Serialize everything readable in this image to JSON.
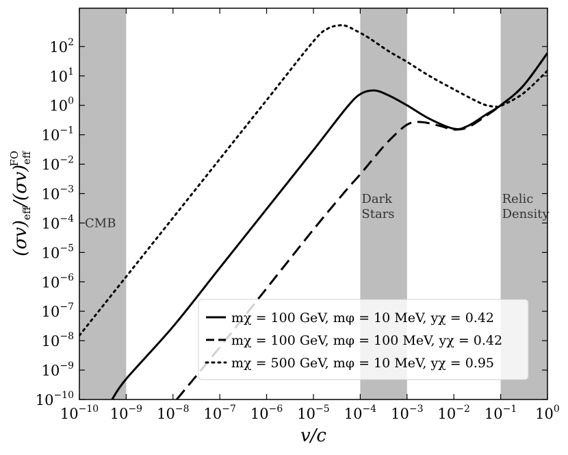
{
  "chart_data": {
    "type": "line",
    "xscale": "log",
    "yscale": "log",
    "xlim": [
      1e-10,
      1
    ],
    "ylim": [
      1e-10,
      2000
    ],
    "xlabel": "v/c",
    "ylabel": "(σv)eff/(σv)eff^FO",
    "x_ticks": [
      {
        "mantissa": "10",
        "exp": "−10"
      },
      {
        "mantissa": "10",
        "exp": "−9"
      },
      {
        "mantissa": "10",
        "exp": "−8"
      },
      {
        "mantissa": "10",
        "exp": "−7"
      },
      {
        "mantissa": "10",
        "exp": "−6"
      },
      {
        "mantissa": "10",
        "exp": "−5"
      },
      {
        "mantissa": "10",
        "exp": "−4"
      },
      {
        "mantissa": "10",
        "exp": "−3"
      },
      {
        "mantissa": "10",
        "exp": "−2"
      },
      {
        "mantissa": "10",
        "exp": "−1"
      },
      {
        "mantissa": "10",
        "exp": "0"
      }
    ],
    "y_ticks": [
      {
        "mantissa": "10",
        "exp": "−10"
      },
      {
        "mantissa": "10",
        "exp": "−9"
      },
      {
        "mantissa": "10",
        "exp": "−8"
      },
      {
        "mantissa": "10",
        "exp": "−7"
      },
      {
        "mantissa": "10",
        "exp": "−6"
      },
      {
        "mantissa": "10",
        "exp": "−5"
      },
      {
        "mantissa": "10",
        "exp": "−4"
      },
      {
        "mantissa": "10",
        "exp": "−3"
      },
      {
        "mantissa": "10",
        "exp": "−2"
      },
      {
        "mantissa": "10",
        "exp": "−1"
      },
      {
        "mantissa": "10",
        "exp": "0"
      },
      {
        "mantissa": "10",
        "exp": "1"
      },
      {
        "mantissa": "10",
        "exp": "2"
      }
    ],
    "shaded_regions": [
      {
        "label_lines": [
          "CMB"
        ],
        "x_from": 1e-10,
        "x_to": 1e-09,
        "label_position": "left"
      },
      {
        "label_lines": [
          "Dark",
          "Stars"
        ],
        "x_from": 0.0001,
        "x_to": 0.001,
        "label_position": "left"
      },
      {
        "label_lines": [
          "Relic",
          "Density"
        ],
        "x_from": 0.1,
        "x_to": 1,
        "label_position": "left"
      }
    ],
    "region_color": "#bdbdbd",
    "legend_position": "lower-right",
    "series": [
      {
        "name": "mχ = 100 GeV, mφ = 10 MeV, yχ = 0.42",
        "style": "solid",
        "x": [
          5e-10,
          1e-09,
          1e-08,
          1e-07,
          1e-06,
          1e-05,
          5e-05,
          0.0001,
          0.0002,
          0.0004,
          0.001,
          0.003,
          0.01,
          0.02,
          0.05,
          0.1,
          0.3,
          1
        ],
        "y": [
          1e-10,
          5e-10,
          3e-08,
          3e-06,
          0.0003,
          0.03,
          0.8,
          2.4,
          3.2,
          2.2,
          1.0,
          0.35,
          0.16,
          0.2,
          0.5,
          1.0,
          4.5,
          60
        ]
      },
      {
        "name": "mχ = 100 GeV, mφ = 100 MeV, yχ = 0.42",
        "style": "dashed",
        "x": [
          1.2e-08,
          1e-07,
          1e-06,
          1e-05,
          5e-05,
          0.0001,
          0.0002,
          0.0004,
          0.001,
          0.002,
          0.005,
          0.01,
          0.02,
          0.05,
          0.1,
          0.3,
          1
        ],
        "y": [
          1e-10,
          6e-09,
          6e-07,
          6e-05,
          0.0013,
          0.0045,
          0.017,
          0.06,
          0.22,
          0.27,
          0.2,
          0.15,
          0.18,
          0.45,
          1.0,
          4.5,
          60
        ]
      },
      {
        "name": "mχ = 500 GeV, mφ = 10 MeV, yχ = 0.95",
        "style": "dotted",
        "x": [
          1e-10,
          1e-09,
          1e-08,
          1e-07,
          1e-06,
          1e-05,
          2e-05,
          3.5e-05,
          5e-05,
          8e-05,
          0.00015,
          0.0004,
          0.001,
          0.003,
          0.01,
          0.03,
          0.05,
          0.08,
          0.1,
          0.3,
          1
        ],
        "y": [
          1.5e-08,
          1.5e-06,
          0.00015,
          0.015,
          1.5,
          150,
          400,
          520,
          500,
          350,
          200,
          70,
          30,
          10,
          3.5,
          1.4,
          1.0,
          0.9,
          0.95,
          2.5,
          15
        ]
      }
    ]
  }
}
